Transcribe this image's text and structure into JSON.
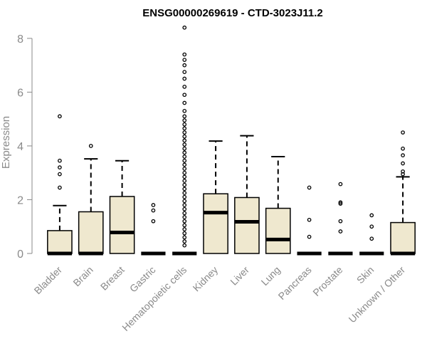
{
  "chart_data": {
    "type": "boxplot",
    "title": "ENSG00000269619 - CTD-3023J11.2",
    "ylabel": "Expression",
    "xlabel": "",
    "ylim": [
      0,
      8.5
    ],
    "yticks": [
      0,
      2,
      4,
      6,
      8
    ],
    "grid": false,
    "legend": "none",
    "colors": {
      "box_fill": "#efe8cf",
      "stroke": "#000000",
      "axis": "#8a8a8a"
    },
    "categories": [
      "Bladder",
      "Brain",
      "Breast",
      "Gastric",
      "Hematopoietic cells",
      "Kidney",
      "Liver",
      "Lung",
      "Pancreas",
      "Prostate",
      "Skin",
      "Unknown / Other"
    ],
    "boxes": [
      {
        "q1": 0,
        "median": 0,
        "q3": 0.85,
        "whisker_low": 0,
        "whisker_high": 1.78,
        "outliers": [
          2.45,
          2.95,
          3.2,
          3.45,
          5.1
        ]
      },
      {
        "q1": 0,
        "median": 0,
        "q3": 1.55,
        "whisker_low": 0,
        "whisker_high": 3.52,
        "outliers": [
          4.0
        ]
      },
      {
        "q1": 0,
        "median": 0.78,
        "q3": 2.12,
        "whisker_low": 0,
        "whisker_high": 3.45,
        "outliers": []
      },
      {
        "q1": 0,
        "median": 0,
        "q3": 0,
        "whisker_low": 0,
        "whisker_high": 0,
        "outliers": [
          1.2,
          1.6,
          1.8
        ]
      },
      {
        "q1": 0,
        "median": 0,
        "q3": 0,
        "whisker_low": 0,
        "whisker_high": 0,
        "outliers": [
          0.3,
          0.45,
          0.6,
          0.75,
          0.9,
          1.05,
          1.2,
          1.35,
          1.5,
          1.65,
          1.8,
          1.95,
          2.1,
          2.25,
          2.4,
          2.55,
          2.7,
          2.85,
          3.0,
          3.15,
          3.3,
          3.45,
          3.6,
          3.75,
          3.9,
          4.05,
          4.2,
          4.35,
          4.5,
          4.65,
          4.8,
          4.95,
          5.1,
          5.3,
          5.6,
          5.9,
          6.2,
          6.5,
          6.75,
          7.0,
          7.2,
          7.4,
          8.4
        ]
      },
      {
        "q1": 0,
        "median": 1.52,
        "q3": 2.22,
        "whisker_low": 0,
        "whisker_high": 4.18,
        "outliers": []
      },
      {
        "q1": 0,
        "median": 1.18,
        "q3": 2.08,
        "whisker_low": 0,
        "whisker_high": 4.38,
        "outliers": []
      },
      {
        "q1": 0,
        "median": 0.52,
        "q3": 1.68,
        "whisker_low": 0,
        "whisker_high": 3.6,
        "outliers": []
      },
      {
        "q1": 0,
        "median": 0,
        "q3": 0,
        "whisker_low": 0,
        "whisker_high": 0,
        "outliers": [
          0.62,
          1.25,
          2.45
        ]
      },
      {
        "q1": 0,
        "median": 0,
        "q3": 0,
        "whisker_low": 0,
        "whisker_high": 0,
        "outliers": [
          0.82,
          1.2,
          1.85,
          1.9,
          2.58
        ]
      },
      {
        "q1": 0,
        "median": 0,
        "q3": 0,
        "whisker_low": 0,
        "whisker_high": 0,
        "outliers": [
          0.55,
          1.0,
          1.42
        ]
      },
      {
        "q1": 0,
        "median": 0,
        "q3": 1.15,
        "whisker_low": 0,
        "whisker_high": 2.85,
        "outliers": [
          2.95,
          3.05,
          3.35,
          3.65,
          3.9,
          4.5
        ]
      }
    ]
  }
}
